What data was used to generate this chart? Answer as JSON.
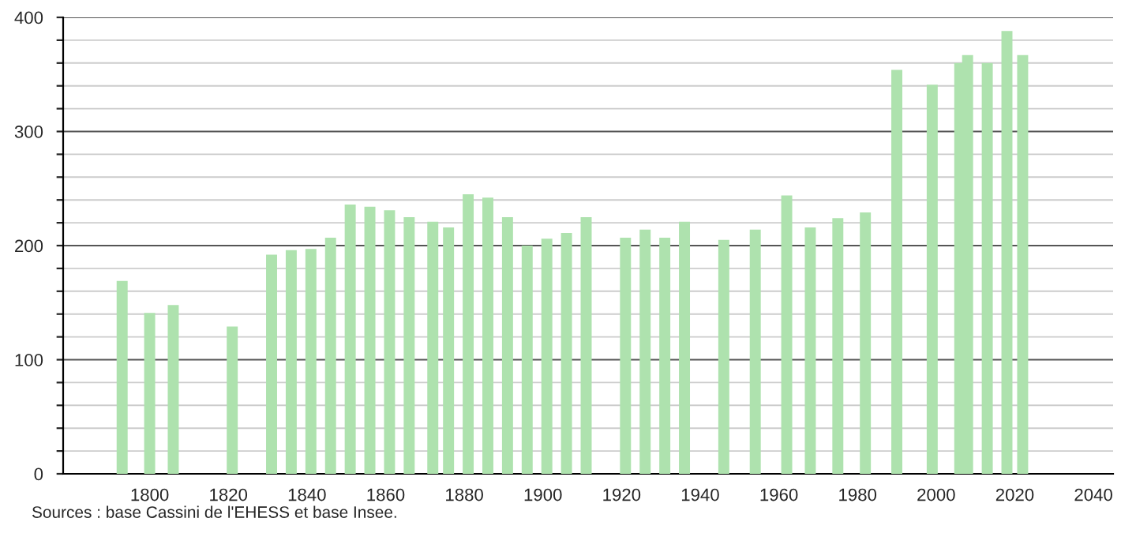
{
  "chart_data": {
    "type": "bar",
    "x": [
      1793,
      1800,
      1806,
      1821,
      1831,
      1836,
      1841,
      1846,
      1851,
      1856,
      1861,
      1866,
      1872,
      1876,
      1881,
      1886,
      1891,
      1896,
      1901,
      1906,
      1911,
      1921,
      1926,
      1931,
      1936,
      1946,
      1954,
      1962,
      1968,
      1975,
      1982,
      1990,
      1999,
      2006,
      2008,
      2013,
      2018,
      2022
    ],
    "values": [
      169,
      141,
      148,
      129,
      192,
      196,
      197,
      207,
      236,
      234,
      231,
      225,
      221,
      216,
      245,
      242,
      225,
      200,
      206,
      211,
      225,
      207,
      214,
      207,
      221,
      205,
      214,
      244,
      216,
      224,
      229,
      354,
      341,
      360,
      367,
      360,
      388,
      367
    ],
    "color": "#aee2ae",
    "xlim": [
      1778,
      2045
    ],
    "xticks": [
      1800,
      1820,
      1840,
      1860,
      1880,
      1900,
      1920,
      1940,
      1960,
      1980,
      2000,
      2020,
      2040
    ],
    "ylim": [
      0,
      400
    ],
    "yticks": [
      0,
      {
        "value": 20,
        "label": null
      },
      {
        "value": 40,
        "label": null
      },
      {
        "value": 60,
        "label": null
      },
      {
        "value": 80,
        "label": null
      },
      100,
      {
        "value": 120,
        "label": null
      },
      {
        "value": 140,
        "label": null
      },
      {
        "value": 160,
        "label": null
      },
      {
        "value": 180,
        "label": null
      },
      200,
      {
        "value": 220,
        "label": null
      },
      {
        "value": 240,
        "label": null
      },
      {
        "value": 260,
        "label": null
      },
      {
        "value": 280,
        "label": null
      },
      300,
      {
        "value": 320,
        "label": null
      },
      {
        "value": 340,
        "label": null
      },
      {
        "value": 360,
        "label": null
      },
      {
        "value": 380,
        "label": null
      },
      400
    ],
    "grid": "y",
    "annotations": [
      "Sources : base Cassini de l'EHESS et base Insee."
    ]
  }
}
